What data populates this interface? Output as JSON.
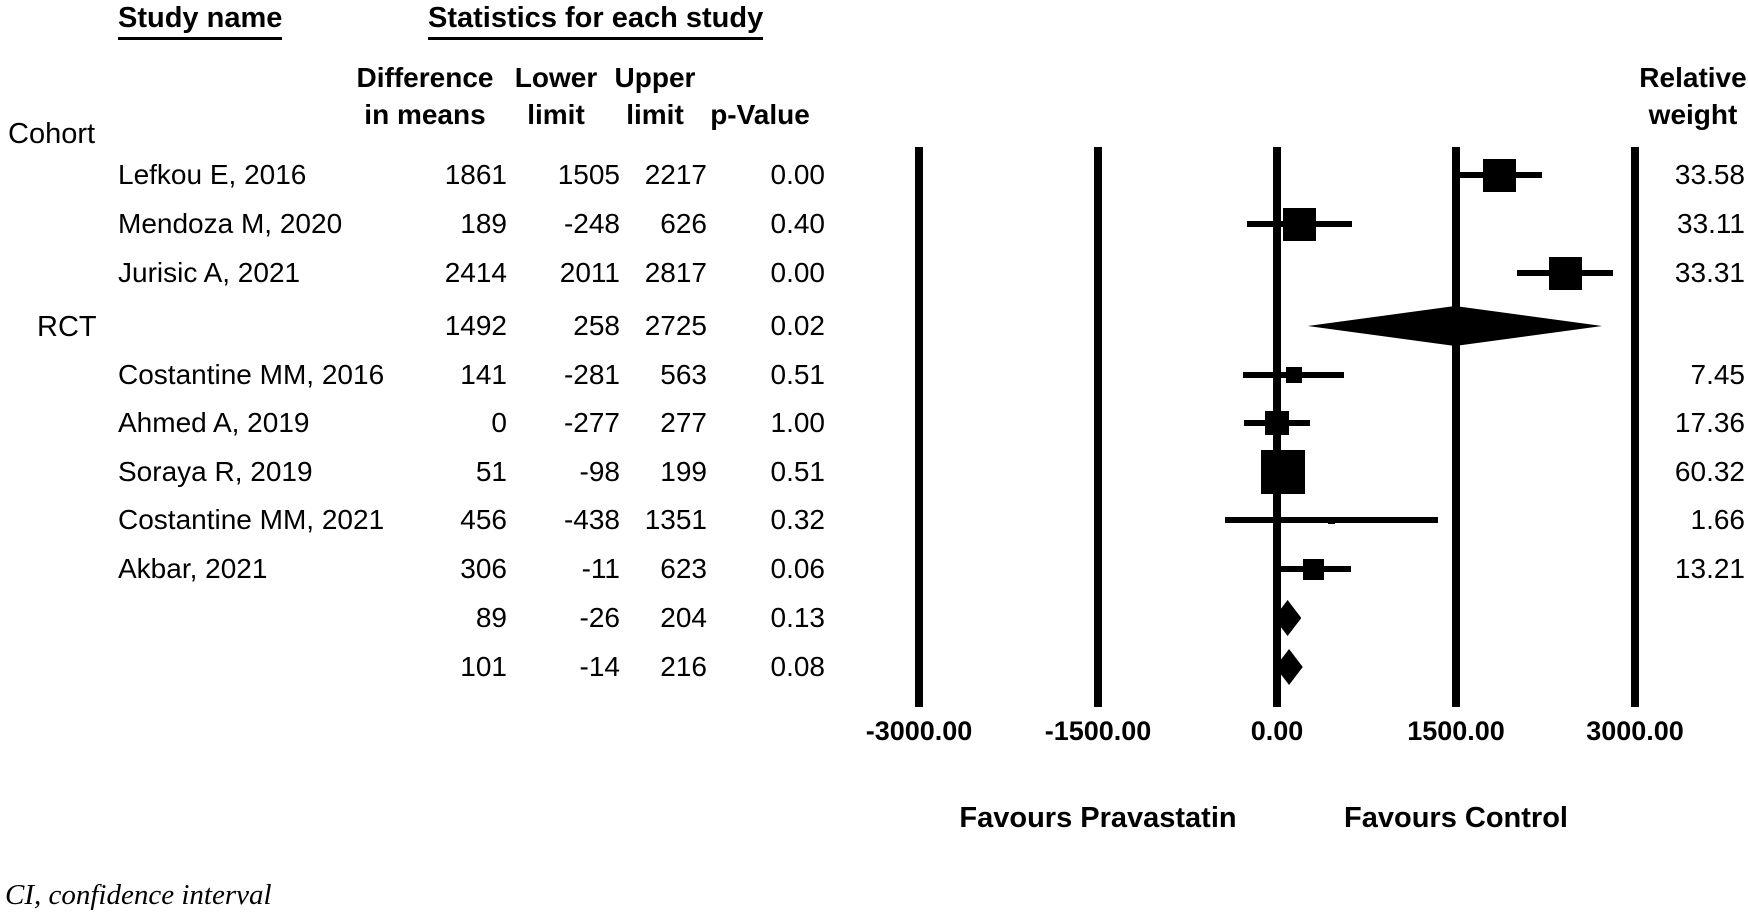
{
  "header": {
    "study_name": "Study name",
    "statistics": "Statistics for each study",
    "diff_line1": "Difference",
    "diff_line2": "in means",
    "lower_line1": "Lower",
    "lower_line2": "limit",
    "upper_line1": "Upper",
    "upper_line2": "limit",
    "p_value": "p-Value",
    "weight_line1": "Relative",
    "weight_line2": "weight"
  },
  "groups": {
    "cohort": "Cohort",
    "rct": "RCT"
  },
  "footnote": "CI, confidence interval",
  "chart_data": {
    "type": "forest",
    "xlabel": "Difference in means",
    "axis": {
      "xlim": [
        -3000,
        3000
      ],
      "ticks": [
        -3000,
        -1500,
        0,
        1500,
        3000
      ],
      "tick_labels": [
        "-3000.00",
        "-1500.00",
        "0.00",
        "1500.00",
        "3000.00"
      ],
      "favours_left": "Favours Pravastatin",
      "favours_right": "Favours Control"
    },
    "rows": [
      {
        "role": "study",
        "group": "Cohort",
        "label": "Lefkou E, 2016",
        "mean": 1861,
        "lower": 1505,
        "upper": 2217,
        "p": "0.00",
        "weight": "33.58"
      },
      {
        "role": "study",
        "group": "Cohort",
        "label": "Mendoza M, 2020",
        "mean": 189,
        "lower": -248,
        "upper": 626,
        "p": "0.40",
        "weight": "33.11"
      },
      {
        "role": "study",
        "group": "Cohort",
        "label": "Jurisic A, 2021",
        "mean": 2414,
        "lower": 2011,
        "upper": 2817,
        "p": "0.00",
        "weight": "33.31"
      },
      {
        "role": "cohort-summary",
        "group": "Cohort",
        "label": "",
        "mean": 1492,
        "lower": 258,
        "upper": 2725,
        "p": "0.02",
        "weight": ""
      },
      {
        "role": "study",
        "group": "RCT",
        "label": "Costantine MM, 2016",
        "mean": 141,
        "lower": -281,
        "upper": 563,
        "p": "0.51",
        "weight": "7.45"
      },
      {
        "role": "study",
        "group": "RCT",
        "label": "Ahmed A, 2019",
        "mean": 0,
        "lower": -277,
        "upper": 277,
        "p": "1.00",
        "weight": "17.36"
      },
      {
        "role": "study",
        "group": "RCT",
        "label": "Soraya R, 2019",
        "mean": 51,
        "lower": -98,
        "upper": 199,
        "p": "0.51",
        "weight": "60.32"
      },
      {
        "role": "study",
        "group": "RCT",
        "label": "Costantine MM, 2021",
        "mean": 456,
        "lower": -438,
        "upper": 1351,
        "p": "0.32",
        "weight": "1.66"
      },
      {
        "role": "study",
        "group": "RCT",
        "label": "Akbar, 2021",
        "mean": 306,
        "lower": -11,
        "upper": 623,
        "p": "0.06",
        "weight": "13.21"
      },
      {
        "role": "rct-summary",
        "group": "RCT",
        "label": "",
        "mean": 89,
        "lower": -26,
        "upper": 204,
        "p": "0.13",
        "weight": ""
      },
      {
        "role": "overall-summary",
        "group": "",
        "label": "",
        "mean": 101,
        "lower": -14,
        "upper": 216,
        "p": "0.08",
        "weight": ""
      }
    ]
  }
}
